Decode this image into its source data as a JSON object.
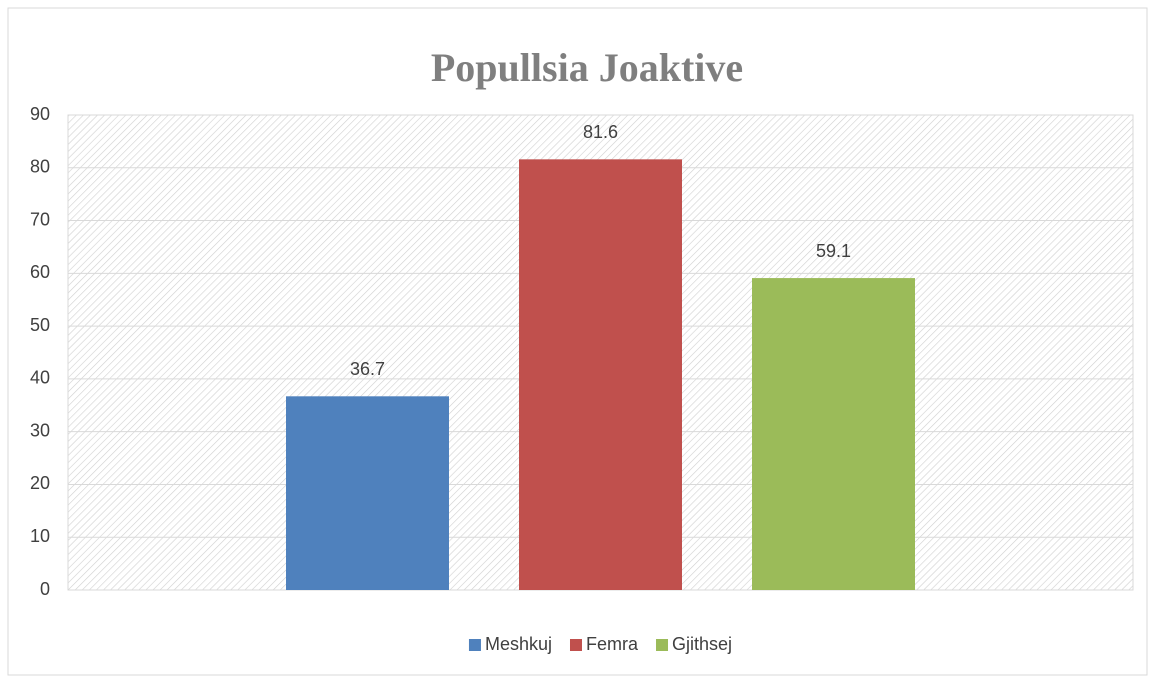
{
  "chart_data": {
    "type": "bar",
    "title": "Popullsia Joaktive",
    "categories": [
      null
    ],
    "series": [
      {
        "name": "Meshkuj",
        "color": "#4f81bd",
        "values": [
          36.7
        ]
      },
      {
        "name": "Femra",
        "color": "#c0504d",
        "values": [
          81.6
        ]
      },
      {
        "name": "Gjithsej",
        "color": "#9bbb59",
        "values": [
          59.1
        ]
      }
    ],
    "ylim": [
      0,
      90
    ],
    "yticks": [
      0,
      10,
      20,
      30,
      40,
      50,
      60,
      70,
      80,
      90
    ],
    "grid": true,
    "legend": "bottom"
  }
}
